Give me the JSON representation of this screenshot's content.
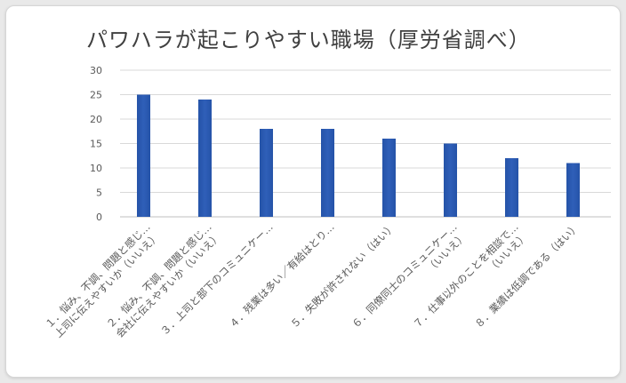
{
  "chart_data": {
    "type": "bar",
    "title": "パワハラが起こりやすい職場（厚労省調べ）",
    "xlabel": "",
    "ylabel": "",
    "ylim": [
      0,
      30
    ],
    "yticks": [
      0,
      5,
      10,
      15,
      20,
      25,
      30
    ],
    "grid": true,
    "bar_color": "#2f5fb8",
    "categories": [
      [
        "１．悩み、不調、問題と感じ…",
        "上司に伝えやすいか（いいえ）"
      ],
      [
        "２．悩み、不調、問題と感じ…",
        "会社に伝えやすいか（いいえ）"
      ],
      [
        "３．上司と部下のコミュニケー…"
      ],
      [
        "４．残業は多い／有給はとり…"
      ],
      [
        "５．失敗が許されない（はい）"
      ],
      [
        "６．同僚同士のコミュニケー…",
        "（いいえ）"
      ],
      [
        "７．仕事以外のことを相談で…",
        "（いいえ）"
      ],
      [
        "８．業績は低調である（はい）"
      ]
    ],
    "values": [
      25,
      24,
      18,
      18,
      16,
      15,
      12,
      11
    ]
  }
}
